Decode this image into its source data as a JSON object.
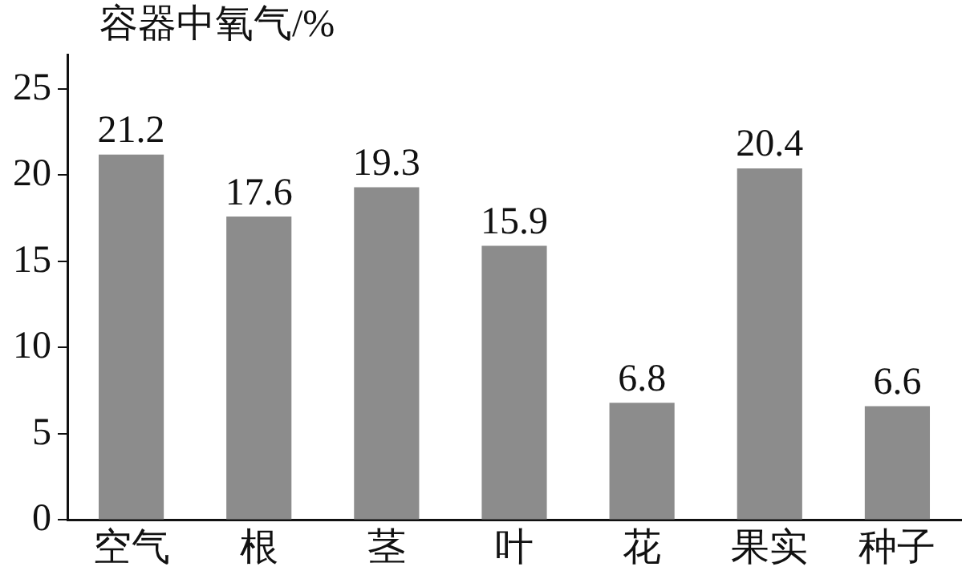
{
  "chart_data": {
    "type": "bar",
    "ylabel": "容器中氧气/%",
    "categories": [
      "空气",
      "根",
      "茎",
      "叶",
      "花",
      "果实",
      "种子"
    ],
    "values": [
      21.2,
      17.6,
      19.3,
      15.9,
      6.8,
      20.4,
      6.6
    ],
    "color": "#8c8c8c",
    "ylim": [
      0,
      27
    ],
    "yticks": [
      0,
      5,
      10,
      15,
      20,
      25
    ],
    "data_labels": true,
    "grid": false,
    "legend": false
  }
}
